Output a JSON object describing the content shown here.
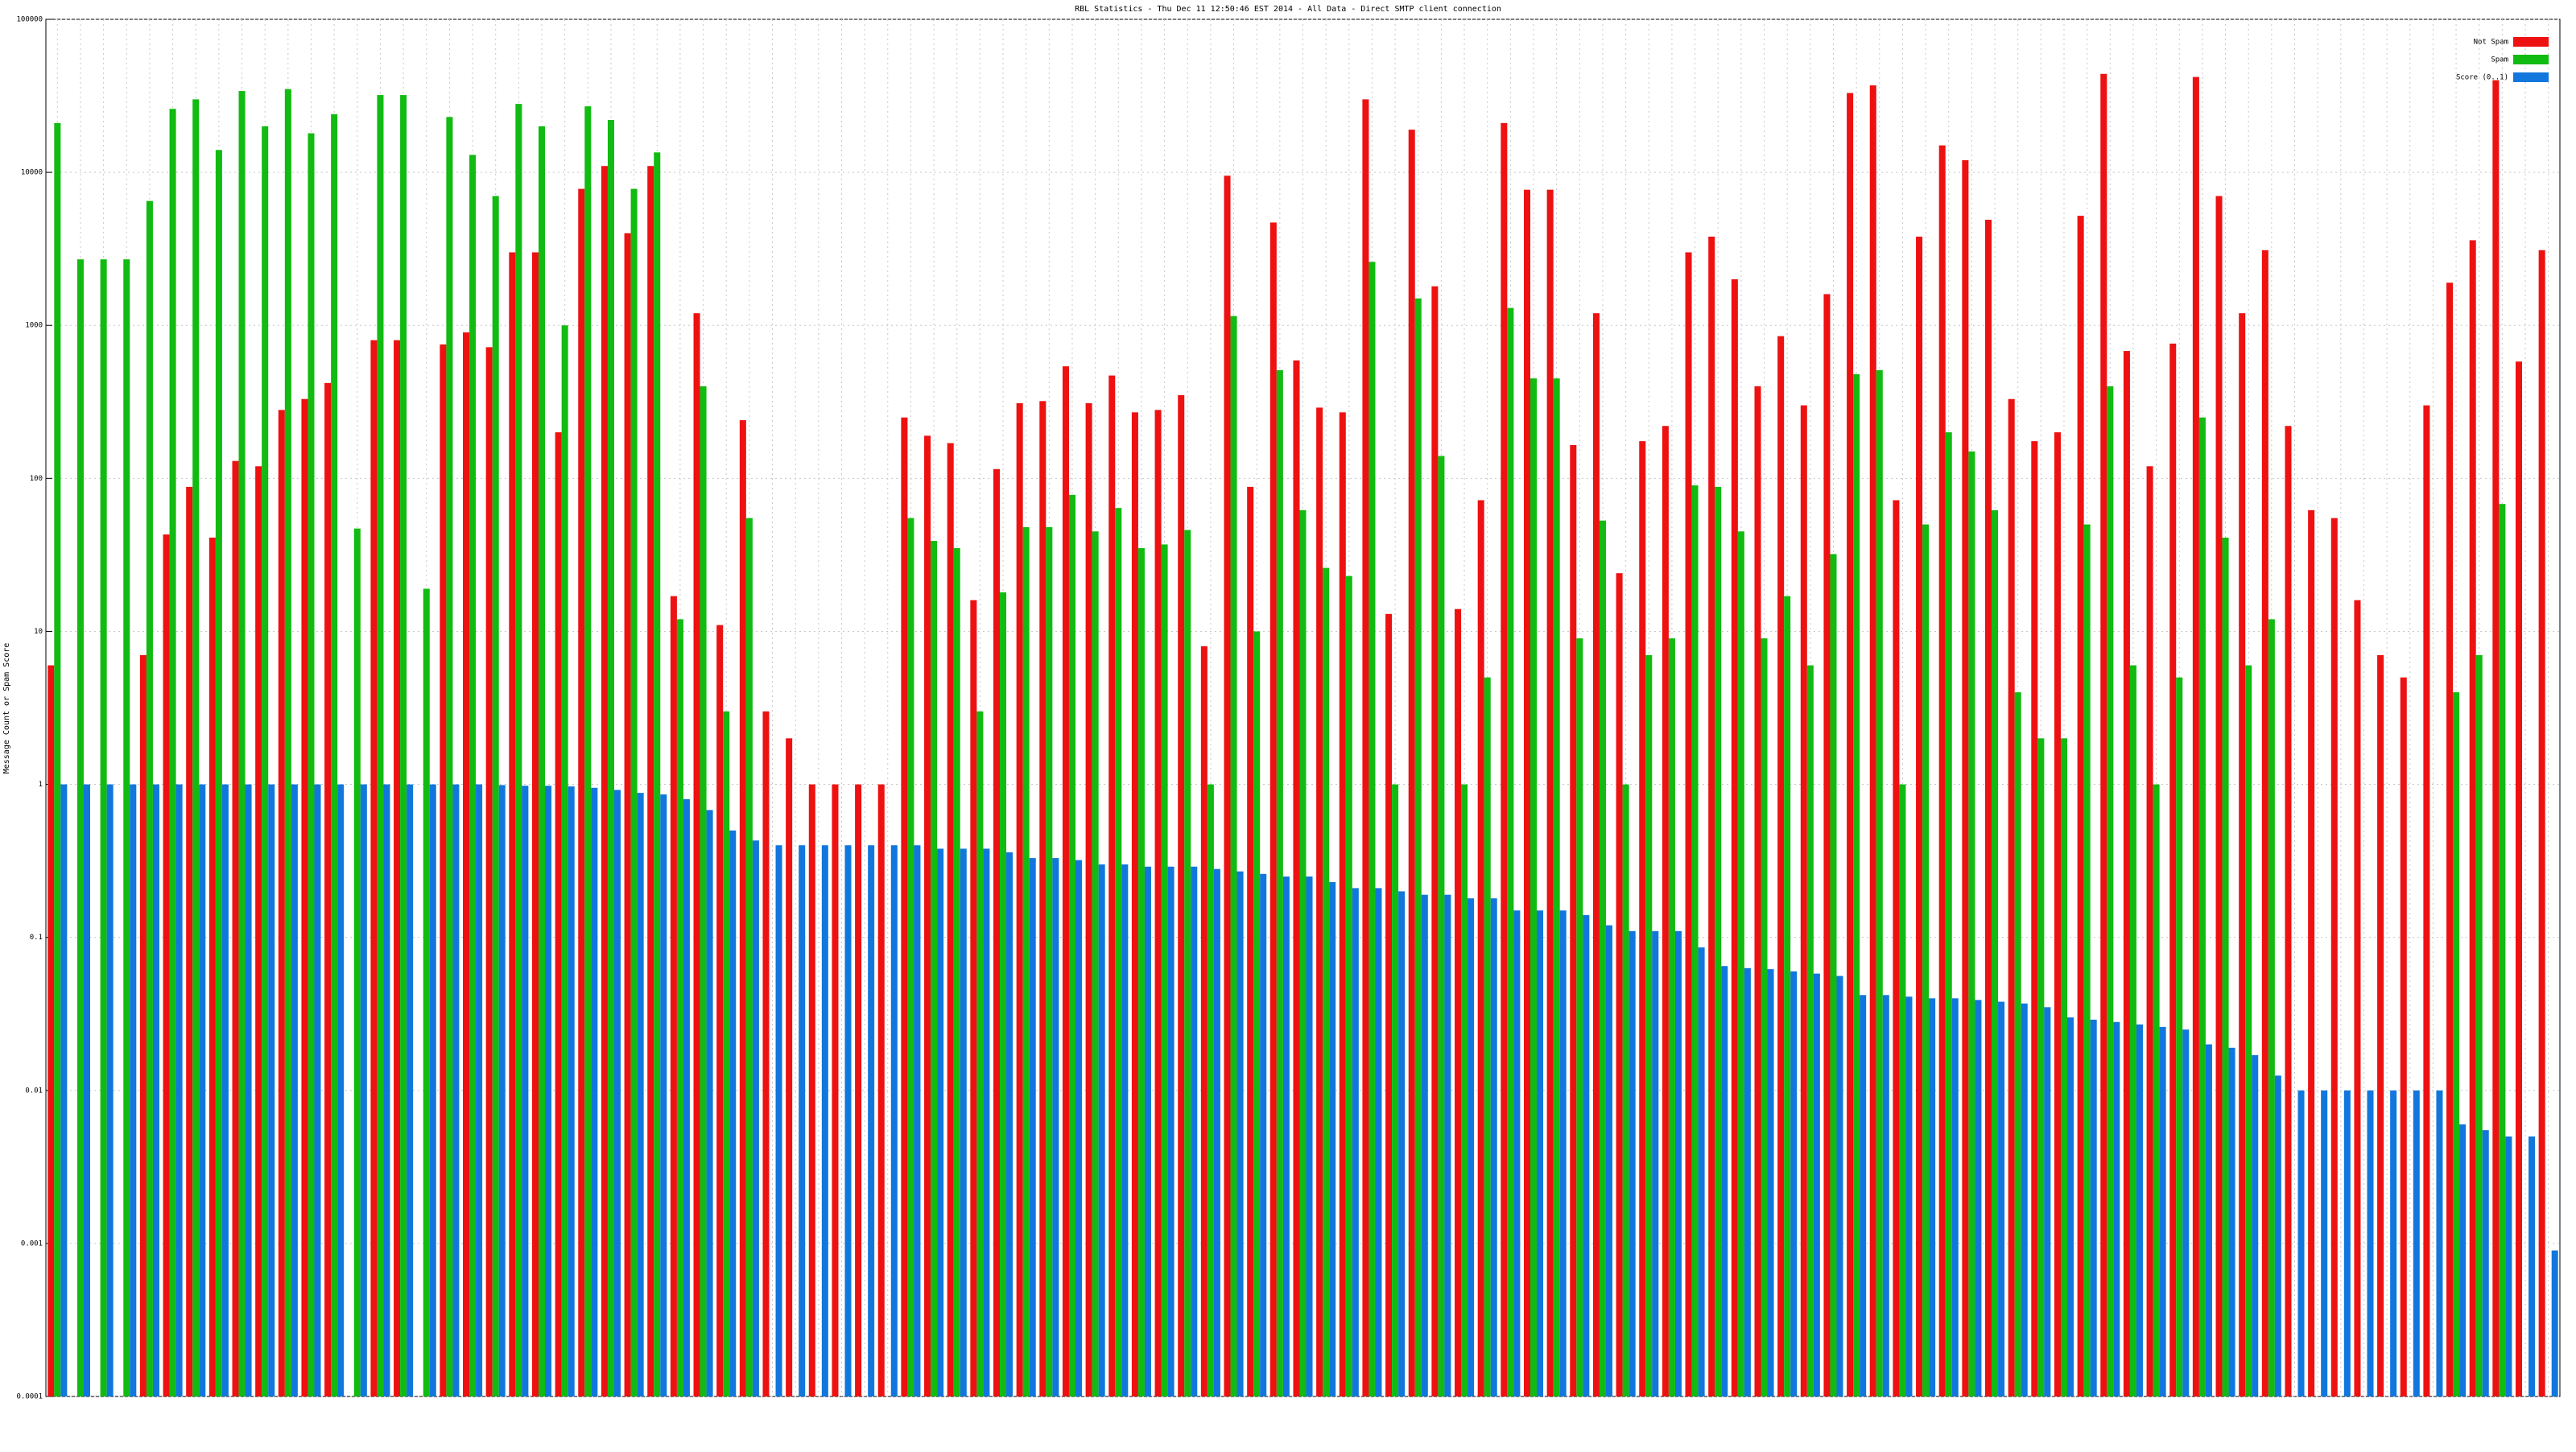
{
  "chart_data": {
    "type": "bar",
    "title": "RBL Statistics - Thu Dec 11 12:50:46 EST 2014 - All Data - Direct SMTP client connection",
    "y_label": "Message Count or Spam Score",
    "log_y": true,
    "grid": true,
    "legend": "top-right",
    "ylim": [
      0.0001,
      100000
    ],
    "yticks": [
      0.0001,
      0.001,
      0.01,
      0.1,
      1,
      10,
      100,
      1000,
      10000,
      100000
    ],
    "categories": [
      null,
      null,
      null,
      null,
      null,
      null,
      null,
      null,
      null,
      null,
      null,
      null,
      null,
      null,
      null,
      null,
      null,
      null,
      null,
      null,
      null,
      null,
      null,
      null,
      null,
      null,
      null,
      null,
      null,
      null,
      null,
      null,
      null,
      null,
      null,
      null,
      null,
      null,
      null,
      null,
      null,
      null,
      null,
      null,
      null,
      null,
      null,
      null,
      null,
      null,
      null,
      null,
      null,
      null,
      null,
      null,
      null,
      null,
      null,
      null,
      null,
      null,
      null,
      null,
      null,
      null,
      null,
      null,
      null,
      null,
      null,
      null,
      null,
      null,
      null,
      null,
      null,
      null,
      null,
      null,
      null,
      null,
      null,
      null,
      null,
      null,
      null,
      null,
      null,
      null,
      null,
      null,
      null,
      null,
      null,
      null,
      null,
      null,
      null,
      null,
      null,
      null,
      null,
      null,
      null,
      null,
      null,
      null,
      null
    ],
    "series": [
      {
        "name": "Not Spam",
        "color": "#ee1111",
        "values": [
          6,
          null,
          null,
          null,
          7,
          43,
          88,
          41,
          130,
          120,
          280,
          330,
          420,
          null,
          800,
          800,
          null,
          750,
          900,
          720,
          3000,
          3000,
          200,
          7800,
          11000,
          4000,
          11000,
          17,
          1200,
          11,
          240,
          3,
          2,
          1,
          1,
          1,
          1,
          250,
          190,
          170,
          16,
          115,
          310,
          320,
          540,
          310,
          470,
          270,
          280,
          350,
          8,
          9500,
          88,
          4700,
          590,
          290,
          270,
          30000,
          13,
          19000,
          1800,
          14,
          72,
          21000,
          7700,
          7700,
          165,
          1200,
          24,
          175,
          220,
          3000,
          3800,
          2000,
          400,
          850,
          300,
          1600,
          33000,
          37000,
          72,
          3800,
          15000,
          12000,
          4900,
          330,
          175,
          200,
          5200,
          44000,
          680,
          120,
          760,
          42000,
          7000,
          1200,
          3100,
          220,
          62,
          55,
          16,
          7,
          5,
          300,
          1900,
          3600,
          40000,
          580,
          3100
        ]
      },
      {
        "name": "Spam",
        "color": "#11bb11",
        "values": [
          21000,
          2700,
          2700,
          2700,
          6500,
          26000,
          30000,
          14000,
          34000,
          20000,
          35000,
          18000,
          24000,
          47,
          32000,
          32000,
          19,
          23000,
          13000,
          7000,
          28000,
          20000,
          1000,
          27000,
          22000,
          7800,
          13500,
          12,
          400,
          3,
          55,
          null,
          null,
          null,
          null,
          null,
          null,
          55,
          39,
          35,
          3,
          18,
          48,
          48,
          78,
          45,
          64,
          35,
          37,
          46,
          1,
          1150,
          10,
          510,
          62,
          26,
          23,
          2600,
          1,
          1500,
          140,
          1,
          5,
          1300,
          450,
          450,
          9,
          53,
          1,
          7,
          9,
          90,
          88,
          45,
          9,
          17,
          6,
          32,
          480,
          510,
          1,
          50,
          200,
          150,
          62,
          4,
          2,
          2,
          50,
          400,
          6,
          1,
          5,
          250,
          41,
          6,
          12,
          null,
          null,
          null,
          null,
          null,
          null,
          null,
          4,
          7,
          68,
          null,
          null
        ]
      },
      {
        "name": "Score (0..1)",
        "color": "#1177dd",
        "values": [
          1,
          1,
          1,
          1,
          1,
          1,
          1,
          1,
          1,
          1,
          1,
          1,
          1,
          1,
          1,
          1,
          1,
          1,
          1,
          0.99,
          0.98,
          0.98,
          0.97,
          0.95,
          0.92,
          0.88,
          0.86,
          0.8,
          0.68,
          0.5,
          0.43,
          0.4,
          0.4,
          0.4,
          0.4,
          0.4,
          0.4,
          0.4,
          0.38,
          0.38,
          0.38,
          0.36,
          0.33,
          0.33,
          0.32,
          0.3,
          0.3,
          0.29,
          0.29,
          0.29,
          0.28,
          0.27,
          0.26,
          0.25,
          0.25,
          0.23,
          0.21,
          0.21,
          0.2,
          0.19,
          0.19,
          0.18,
          0.18,
          0.15,
          0.15,
          0.15,
          0.14,
          0.12,
          0.11,
          0.11,
          0.11,
          0.086,
          0.065,
          0.063,
          0.062,
          0.06,
          0.058,
          0.056,
          0.042,
          0.042,
          0.041,
          0.04,
          0.04,
          0.039,
          0.038,
          0.037,
          0.035,
          0.03,
          0.029,
          0.028,
          0.027,
          0.026,
          0.025,
          0.02,
          0.019,
          0.017,
          0.0125,
          0.01,
          0.01,
          0.01,
          0.01,
          0.01,
          0.01,
          0.01,
          0.006,
          0.0055,
          0.005,
          0.005,
          0.0009
        ]
      }
    ]
  }
}
